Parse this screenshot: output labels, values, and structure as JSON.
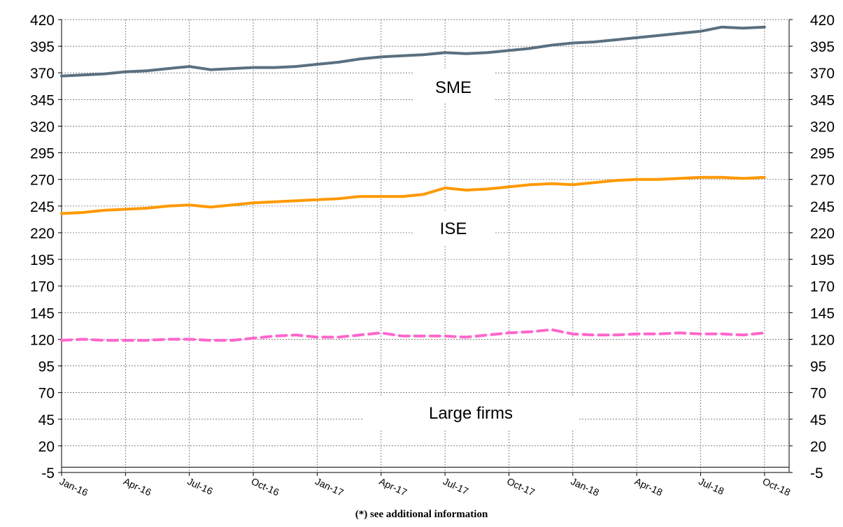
{
  "chart_data": {
    "type": "line",
    "title": "",
    "xlabel": "",
    "ylabel": "",
    "ylim": [
      -5,
      420
    ],
    "yticks": [
      -5,
      20,
      45,
      70,
      95,
      120,
      145,
      170,
      195,
      220,
      245,
      270,
      295,
      320,
      345,
      370,
      395,
      420
    ],
    "xticks": [
      "Jan-16",
      "Apr-16",
      "Jul-16",
      "Oct-16",
      "Jan-17",
      "Apr-17",
      "Jul-17",
      "Oct-17",
      "Jan-18",
      "Apr-18",
      "Jul-18",
      "Oct-18"
    ],
    "grid": true,
    "legend": "none",
    "series": [
      {
        "name": "SME",
        "color": "#5a7080",
        "style": "solid",
        "values": [
          367,
          368,
          369,
          371,
          372,
          374,
          376,
          373,
          374,
          375,
          375,
          376,
          378,
          380,
          383,
          385,
          386,
          387,
          389,
          388,
          389,
          391,
          393,
          396,
          398,
          399,
          401,
          403,
          405,
          407,
          409,
          413,
          412,
          413
        ]
      },
      {
        "name": "ISE",
        "color": "#ff9900",
        "style": "solid",
        "values": [
          238,
          239,
          241,
          242,
          243,
          245,
          246,
          244,
          246,
          248,
          249,
          250,
          251,
          252,
          254,
          254,
          254,
          256,
          262,
          260,
          261,
          263,
          265,
          266,
          265,
          267,
          269,
          270,
          270,
          271,
          272,
          272,
          271,
          272
        ]
      },
      {
        "name": "Large firms",
        "color": "#ff66cc",
        "style": "dashed",
        "values": [
          119,
          120,
          119,
          119,
          119,
          120,
          120,
          119,
          119,
          121,
          123,
          124,
          122,
          122,
          124,
          126,
          123,
          123,
          123,
          122,
          124,
          126,
          127,
          129,
          125,
          124,
          124,
          125,
          125,
          126,
          125,
          125,
          124,
          126
        ]
      }
    ]
  },
  "labels": {
    "sme": "SME",
    "ise": "ISE",
    "large": "Large firms"
  },
  "footnote": "(*) see additional information"
}
